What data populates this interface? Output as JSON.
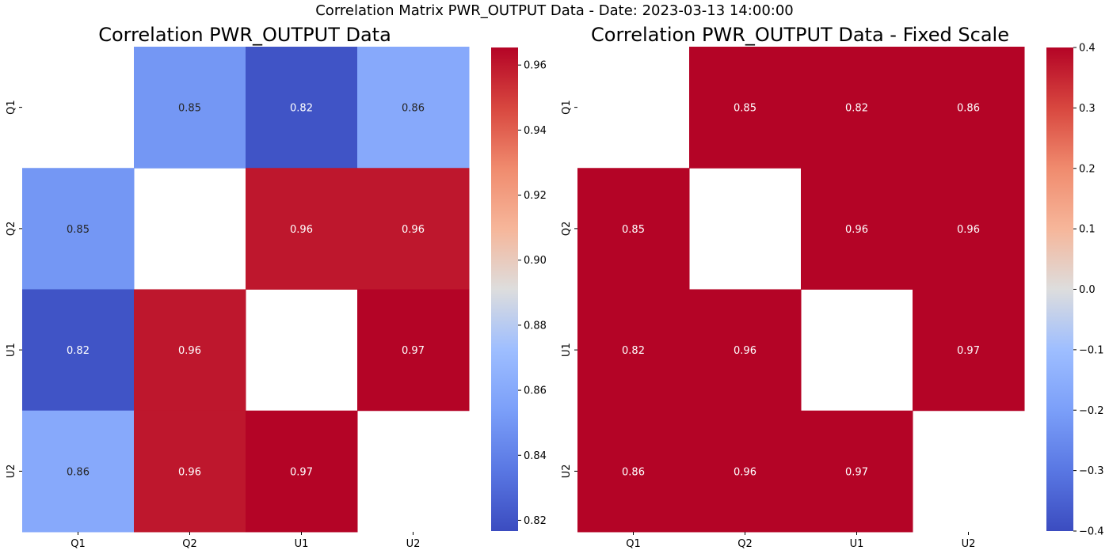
{
  "suptitle": "Correlation Matrix PWR_OUTPUT Data - Date: 2023-03-13 14:00:00",
  "chart_data": [
    {
      "type": "heatmap",
      "title": "Correlation PWR_OUTPUT Data",
      "x_categories": [
        "Q1",
        "Q2",
        "U1",
        "U2"
      ],
      "y_categories": [
        "Q1",
        "Q2",
        "U1",
        "U2"
      ],
      "values": [
        [
          null,
          0.85,
          0.82,
          0.86
        ],
        [
          0.85,
          null,
          0.96,
          0.96
        ],
        [
          0.82,
          0.96,
          null,
          0.97
        ],
        [
          0.86,
          0.96,
          0.97,
          null
        ]
      ],
      "colormap": "coolwarm",
      "vmin": 0.8167,
      "vmax": 0.9654,
      "colorbar_ticks": [
        "0.82",
        "0.84",
        "0.86",
        "0.88",
        "0.90",
        "0.92",
        "0.94",
        "0.96"
      ],
      "annotation_colors": {
        "light_cells": "#262626",
        "dark_cells": "#ffffff"
      }
    },
    {
      "type": "heatmap",
      "title": "Correlation PWR_OUTPUT Data - Fixed Scale",
      "x_categories": [
        "Q1",
        "Q2",
        "U1",
        "U2"
      ],
      "y_categories": [
        "Q1",
        "Q2",
        "U1",
        "U2"
      ],
      "values": [
        [
          null,
          0.85,
          0.82,
          0.86
        ],
        [
          0.85,
          null,
          0.96,
          0.96
        ],
        [
          0.82,
          0.96,
          null,
          0.97
        ],
        [
          0.86,
          0.96,
          0.97,
          null
        ]
      ],
      "colormap": "coolwarm",
      "vmin": -0.4,
      "vmax": 0.4,
      "colorbar_ticks": [
        "−0.4",
        "−0.3",
        "−0.2",
        "−0.1",
        "0.0",
        "0.1",
        "0.2",
        "0.3",
        "0.4"
      ],
      "annotation_colors": {
        "light_cells": "#262626",
        "dark_cells": "#ffffff"
      }
    }
  ]
}
